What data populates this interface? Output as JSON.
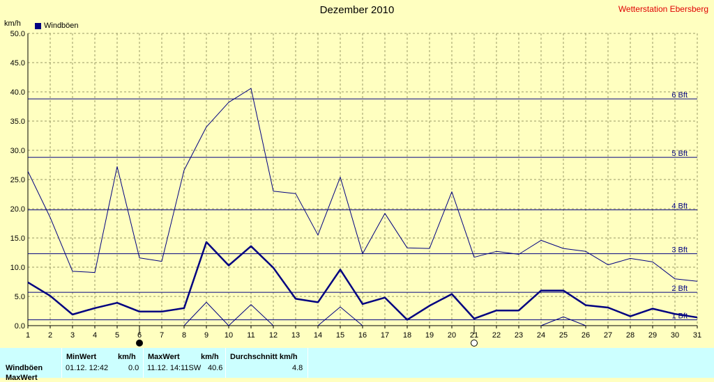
{
  "header": {
    "title": "Dezember 2010",
    "station": "Wetterstation Ebersberg",
    "unit": "km/h",
    "legend": "Windböen"
  },
  "chart_data": {
    "type": "line",
    "title": "Dezember 2010",
    "ylabel": "km/h",
    "ylim": [
      0,
      50
    ],
    "yticks": [
      "0.0",
      "5.0",
      "10.0",
      "15.0",
      "20.0",
      "25.0",
      "30.0",
      "35.0",
      "40.0",
      "45.0",
      "50.0"
    ],
    "x": [
      1,
      2,
      3,
      4,
      5,
      6,
      7,
      8,
      9,
      10,
      11,
      12,
      13,
      14,
      15,
      16,
      17,
      18,
      19,
      20,
      21,
      22,
      23,
      24,
      25,
      26,
      27,
      28,
      29,
      30,
      31
    ],
    "grid": true,
    "legend_position": "top-left",
    "series": [
      {
        "name": "Windböen",
        "role": "mean",
        "values": [
          7.4,
          5.1,
          1.9,
          3.0,
          3.9,
          2.4,
          2.4,
          3.0,
          14.3,
          10.3,
          13.6,
          9.9,
          4.6,
          4.0,
          9.6,
          3.7,
          4.8,
          1.0,
          3.4,
          5.4,
          1.2,
          2.6,
          2.6,
          6.0,
          6.0,
          3.5,
          3.1,
          1.6,
          2.9,
          2.0,
          1.4
        ]
      },
      {
        "role": "max",
        "values": [
          26.4,
          18.5,
          9.3,
          9.1,
          27.2,
          11.6,
          11.0,
          26.6,
          34.0,
          38.2,
          40.6,
          23.0,
          22.6,
          15.5,
          25.4,
          12.3,
          19.2,
          13.3,
          13.2,
          22.9,
          11.7,
          12.7,
          12.2,
          14.6,
          13.2,
          12.7,
          10.4,
          11.5,
          10.9,
          8.0,
          7.6
        ]
      },
      {
        "role": "min",
        "values": [
          null,
          null,
          null,
          null,
          null,
          null,
          null,
          0.0,
          4.0,
          0.0,
          3.6,
          0.0,
          null,
          0.0,
          3.2,
          0.0,
          null,
          null,
          null,
          null,
          null,
          null,
          null,
          0.0,
          1.5,
          0.0,
          null,
          null,
          null,
          null,
          null
        ]
      }
    ],
    "beaufort_lines": [
      {
        "label": "1 Bft",
        "value": 1.0
      },
      {
        "label": "2 Bft",
        "value": 5.7
      },
      {
        "label": "3 Bft",
        "value": 12.3
      },
      {
        "label": "4 Bft",
        "value": 19.8
      },
      {
        "label": "5 Bft",
        "value": 28.8
      },
      {
        "label": "6 Bft",
        "value": 38.8
      }
    ],
    "moon_phases": [
      {
        "day": 6,
        "phase": "new"
      },
      {
        "day": 21,
        "phase": "full"
      }
    ],
    "colors": {
      "background": "#ffffc0",
      "series": "#000080",
      "grid": "#999966",
      "title_station": "#e00000"
    }
  },
  "stats": {
    "headers": {
      "min": "MinWert",
      "min_unit": "km/h",
      "max": "MaxWert",
      "max_unit": "km/h",
      "avg": "Durchschnitt km/h"
    },
    "rows": [
      {
        "label": "Windböen",
        "min_date": "01.12.  12:42",
        "min_value": "0.0",
        "max_date": "11.12.  14:11SW",
        "max_value": "40.6",
        "avg": "4.8"
      },
      {
        "label": "MaxWert"
      }
    ]
  }
}
